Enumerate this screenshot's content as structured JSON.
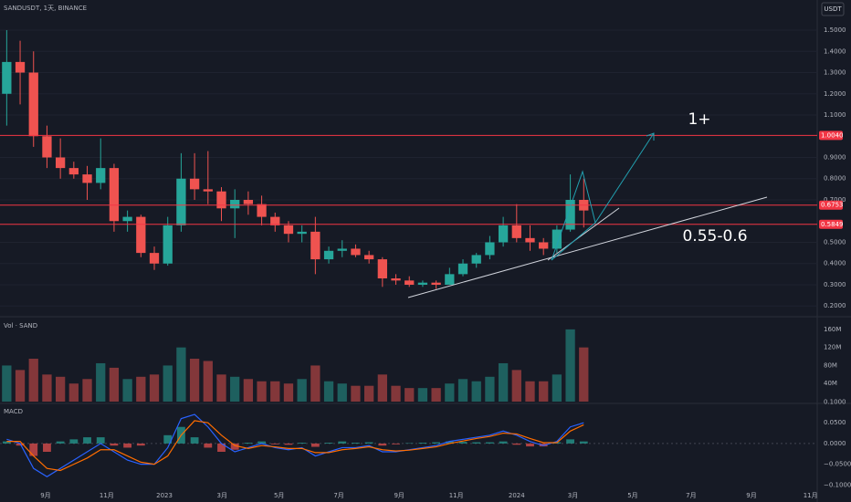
{
  "chart_data": [
    {
      "type": "candlestick",
      "title": "SANDUSDT, 1天, BINANCE",
      "currency": "USDT",
      "up_color": "#26a69a",
      "down_color": "#ef5350",
      "xlim": [
        0,
        60.9
      ],
      "ylim": [
        0.158,
        1.642
      ],
      "grid": true,
      "yticks": [
        {
          "value": 0.2,
          "label": "0.2000"
        },
        {
          "value": 0.3,
          "label": "0.3000"
        },
        {
          "value": 0.4,
          "label": "0.4000"
        },
        {
          "value": 0.5,
          "label": "0.5000"
        },
        {
          "value": 0.7,
          "label": "0.7000"
        },
        {
          "value": 0.8,
          "label": "0.8000"
        },
        {
          "value": 0.9,
          "label": "0.9000"
        },
        {
          "value": 1.1,
          "label": "1.1000"
        },
        {
          "value": 1.2,
          "label": "1.2000"
        },
        {
          "value": 1.3,
          "label": "1.3000"
        },
        {
          "value": 1.4,
          "label": "1.4000"
        },
        {
          "value": 1.5,
          "label": "1.5000"
        }
      ],
      "levels": [
        {
          "value": 1.004,
          "label": "1.0040"
        },
        {
          "value": 0.6753,
          "label": "0.6753"
        },
        {
          "value": 0.5849,
          "label": "0.5849"
        }
      ],
      "level_color": "#f23645",
      "annotations": [
        "1+",
        "0.55-0.6"
      ],
      "x": [
        0.5,
        1.5,
        2.5,
        3.5,
        4.5,
        5.5,
        6.5,
        7.5,
        8.5,
        9.5,
        10.5,
        11.5,
        12.5,
        13.5,
        14.5,
        15.5,
        16.5,
        17.5,
        18.5,
        19.5,
        20.5,
        21.5,
        22.5,
        23.5,
        24.5,
        25.5,
        26.5,
        27.5,
        28.5,
        29.5,
        30.5,
        31.5,
        32.5,
        33.5,
        34.5,
        35.5,
        36.5,
        37.5,
        38.5,
        39.5,
        40.5,
        41.5,
        42.5,
        43.5
      ],
      "open": [
        1.2,
        1.35,
        1.3,
        1.0,
        0.9,
        0.85,
        0.82,
        0.78,
        0.85,
        0.6,
        0.62,
        0.45,
        0.4,
        0.58,
        0.8,
        0.75,
        0.74,
        0.66,
        0.7,
        0.68,
        0.62,
        0.58,
        0.54,
        0.55,
        0.42,
        0.46,
        0.47,
        0.44,
        0.42,
        0.33,
        0.32,
        0.3,
        0.31,
        0.3,
        0.35,
        0.4,
        0.44,
        0.5,
        0.58,
        0.52,
        0.5,
        0.47,
        0.56,
        0.7
      ],
      "high": [
        1.5,
        1.45,
        1.4,
        1.05,
        0.99,
        0.88,
        0.86,
        0.99,
        0.87,
        0.65,
        0.63,
        0.48,
        0.62,
        0.92,
        0.92,
        0.93,
        0.76,
        0.75,
        0.74,
        0.72,
        0.64,
        0.6,
        0.58,
        0.62,
        0.48,
        0.51,
        0.49,
        0.46,
        0.43,
        0.35,
        0.34,
        0.32,
        0.32,
        0.38,
        0.42,
        0.45,
        0.53,
        0.62,
        0.68,
        0.58,
        0.52,
        0.58,
        0.82,
        0.8
      ],
      "low": [
        1.05,
        1.15,
        0.95,
        0.85,
        0.8,
        0.8,
        0.7,
        0.75,
        0.55,
        0.55,
        0.43,
        0.37,
        0.39,
        0.55,
        0.7,
        0.68,
        0.6,
        0.52,
        0.63,
        0.58,
        0.55,
        0.5,
        0.5,
        0.35,
        0.4,
        0.43,
        0.43,
        0.4,
        0.29,
        0.3,
        0.29,
        0.29,
        0.28,
        0.3,
        0.34,
        0.38,
        0.42,
        0.48,
        0.5,
        0.46,
        0.44,
        0.45,
        0.55,
        0.57
      ],
      "close": [
        1.35,
        1.3,
        1.0,
        0.9,
        0.85,
        0.82,
        0.78,
        0.85,
        0.6,
        0.62,
        0.45,
        0.4,
        0.58,
        0.8,
        0.75,
        0.74,
        0.66,
        0.7,
        0.68,
        0.62,
        0.58,
        0.54,
        0.55,
        0.42,
        0.46,
        0.47,
        0.44,
        0.42,
        0.33,
        0.32,
        0.3,
        0.31,
        0.3,
        0.35,
        0.4,
        0.44,
        0.5,
        0.58,
        0.52,
        0.5,
        0.47,
        0.56,
        0.7,
        0.65
      ]
    },
    {
      "type": "bar",
      "title": "Vol · SAND",
      "xlim": [
        0,
        60.9
      ],
      "ylim": [
        0,
        182
      ],
      "yticks": [
        {
          "value": 40,
          "label": "40M"
        },
        {
          "value": 80,
          "label": "80M"
        },
        {
          "value": 120,
          "label": "120M"
        },
        {
          "value": 160,
          "label": "160M"
        }
      ],
      "values": [
        80,
        70,
        95,
        60,
        55,
        40,
        50,
        85,
        75,
        50,
        55,
        60,
        80,
        120,
        95,
        90,
        60,
        55,
        50,
        45,
        45,
        40,
        50,
        80,
        45,
        40,
        35,
        35,
        60,
        35,
        30,
        30,
        30,
        40,
        50,
        45,
        55,
        85,
        70,
        45,
        45,
        60,
        160,
        120
      ]
    },
    {
      "type": "macd",
      "title": "MACD",
      "xlim": [
        0,
        60.9
      ],
      "ylim": [
        -0.13,
        0.101
      ],
      "yticks": [
        {
          "value": 0.1,
          "label": "0.1000"
        },
        {
          "value": 0.05,
          "label": "0.0500"
        },
        {
          "value": 0,
          "label": "0.0000"
        },
        {
          "value": -0.05,
          "label": "−0.0500"
        },
        {
          "value": -0.1,
          "label": "−0.1000"
        }
      ],
      "xticks": [
        {
          "value": 3.4,
          "label": "9月"
        },
        {
          "value": 7.95,
          "label": "11月"
        },
        {
          "value": 12.25,
          "label": "2023"
        },
        {
          "value": 16.55,
          "label": "3月"
        },
        {
          "value": 20.8,
          "label": "5月"
        },
        {
          "value": 25.25,
          "label": "7月"
        },
        {
          "value": 29.75,
          "label": "9月"
        },
        {
          "value": 34,
          "label": "11月"
        },
        {
          "value": 38.5,
          "label": "2024"
        },
        {
          "value": 42.7,
          "label": "3月"
        },
        {
          "value": 47.15,
          "label": "5月"
        },
        {
          "value": 51.5,
          "label": "7月"
        },
        {
          "value": 56,
          "label": "9月"
        },
        {
          "value": 60.4,
          "label": "11月"
        }
      ],
      "histogram": {
        "up_color": "#26a69a",
        "down_color": "#ef5350",
        "values": [
          0.005,
          -0.005,
          -0.03,
          -0.02,
          0.005,
          0.01,
          0.015,
          0.015,
          -0.005,
          -0.01,
          -0.005,
          0.0,
          0.02,
          0.04,
          0.015,
          -0.01,
          -0.02,
          -0.015,
          0.002,
          0.005,
          -0.002,
          -0.003,
          0.002,
          -0.008,
          0.002,
          0.005,
          0.002,
          0.003,
          -0.005,
          -0.002,
          0.001,
          0.002,
          0.003,
          0.005,
          0.004,
          0.003,
          0.003,
          0.005,
          -0.003,
          -0.007,
          -0.007,
          0.003,
          0.01,
          0.005
        ]
      },
      "series": [
        {
          "color": "#2962ff",
          "values": [
            0.01,
            0.0,
            -0.06,
            -0.08,
            -0.06,
            -0.04,
            -0.02,
            0.0,
            -0.02,
            -0.04,
            -0.05,
            -0.05,
            -0.01,
            0.06,
            0.07,
            0.04,
            0.0,
            -0.02,
            -0.01,
            0.0,
            -0.01,
            -0.015,
            -0.01,
            -0.03,
            -0.02,
            -0.01,
            -0.01,
            -0.005,
            -0.02,
            -0.02,
            -0.015,
            -0.01,
            -0.005,
            0.005,
            0.01,
            0.015,
            0.02,
            0.03,
            0.02,
            0.005,
            -0.005,
            0.005,
            0.04,
            0.05
          ]
        },
        {
          "color": "#ff6d00",
          "values": [
            0.005,
            0.005,
            -0.03,
            -0.06,
            -0.065,
            -0.05,
            -0.035,
            -0.015,
            -0.015,
            -0.03,
            -0.045,
            -0.05,
            -0.03,
            0.02,
            0.055,
            0.05,
            0.02,
            -0.005,
            -0.012,
            -0.005,
            -0.008,
            -0.012,
            -0.012,
            -0.022,
            -0.022,
            -0.015,
            -0.012,
            -0.008,
            -0.015,
            -0.018,
            -0.016,
            -0.012,
            -0.008,
            0.0,
            0.006,
            0.012,
            0.017,
            0.025,
            0.023,
            0.012,
            0.002,
            0.002,
            0.03,
            0.045
          ]
        }
      ]
    }
  ]
}
